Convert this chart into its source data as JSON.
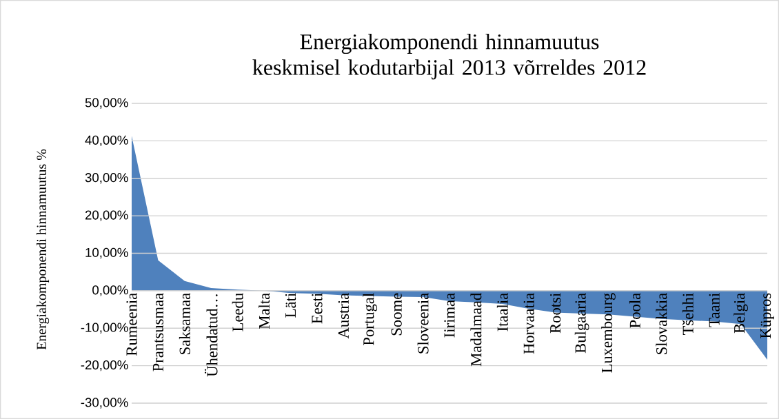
{
  "chart_data": {
    "type": "area",
    "title": "Energiakomponendi hinnamuutus keskmisel kodutarbijal 2013 võrreldes 2012",
    "ylabel": "Energiakomponendi hinnamuutus %",
    "categories": [
      "Rumeenia",
      "Prantsusmaa",
      "Saksamaa",
      "Ühendatud…",
      "Leedu",
      "Malta",
      "Läti",
      "Eesti",
      "Austria",
      "Portugal",
      "Soome",
      "Sloveenia",
      "Iirimaa",
      "Madalmaad",
      "Itaalia",
      "Horvaatia",
      "Rootsi",
      "Bulgaaria",
      "Luxembourg",
      "Poola",
      "Slovakkia",
      "Tšehhi",
      "Taani",
      "Belgia",
      "Küpros"
    ],
    "values": [
      41.3,
      8.1,
      2.6,
      0.7,
      0.3,
      0,
      -0.6,
      -0.8,
      -1.2,
      -1.4,
      -1.6,
      -1.7,
      -2.8,
      -3.1,
      -3.5,
      -4.8,
      -5.8,
      -6.1,
      -6.3,
      -6.9,
      -7.5,
      -7.9,
      -8.2,
      -8.9,
      -18.4
    ],
    "color": "#4f81bd",
    "ylim": [
      -30,
      50
    ],
    "yticks": [
      {
        "value": -30,
        "label": "-30,00%"
      },
      {
        "value": -20,
        "label": "-20,00%"
      },
      {
        "value": -10,
        "label": "-10,00%"
      },
      {
        "value": 0,
        "label": "0,00%"
      },
      {
        "value": 10,
        "label": "10,00%"
      },
      {
        "value": 20,
        "label": "20,00%"
      },
      {
        "value": 30,
        "label": "30,00%"
      },
      {
        "value": 40,
        "label": "40,00%"
      },
      {
        "value": 50,
        "label": "50,00%"
      }
    ],
    "grid": "y"
  }
}
